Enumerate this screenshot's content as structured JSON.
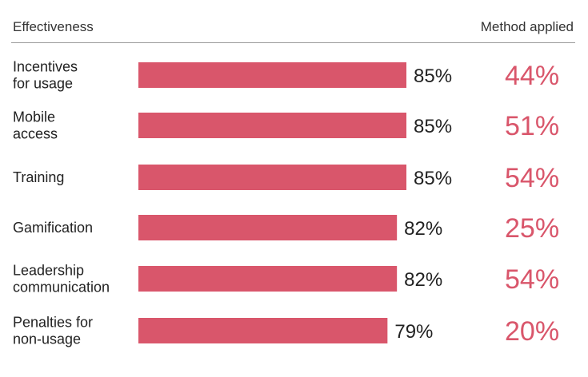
{
  "header": {
    "left_label": "Effectiveness",
    "right_label": "Method applied"
  },
  "colors": {
    "bar": "#d9566b",
    "method_text": "#d9566b"
  },
  "chart_data": {
    "type": "bar",
    "orientation": "horizontal",
    "categories": [
      [
        "Incentives",
        "for usage"
      ],
      [
        "Mobile",
        "access"
      ],
      [
        "Training"
      ],
      [
        "Gamification"
      ],
      [
        "Leadership",
        "communication"
      ],
      [
        "Penalties for",
        "non-usage"
      ]
    ],
    "series": [
      {
        "name": "Effectiveness",
        "values": [
          85,
          85,
          85,
          82,
          82,
          79
        ],
        "labels": [
          "85%",
          "85%",
          "85%",
          "82%",
          "82%",
          "79%"
        ]
      },
      {
        "name": "Method applied",
        "values": [
          44,
          51,
          54,
          25,
          54,
          20
        ],
        "labels": [
          "44%",
          "51%",
          "54%",
          "25%",
          "54%",
          "20%"
        ]
      }
    ],
    "xlim": [
      0,
      100
    ],
    "grid": false,
    "legend": "none"
  }
}
